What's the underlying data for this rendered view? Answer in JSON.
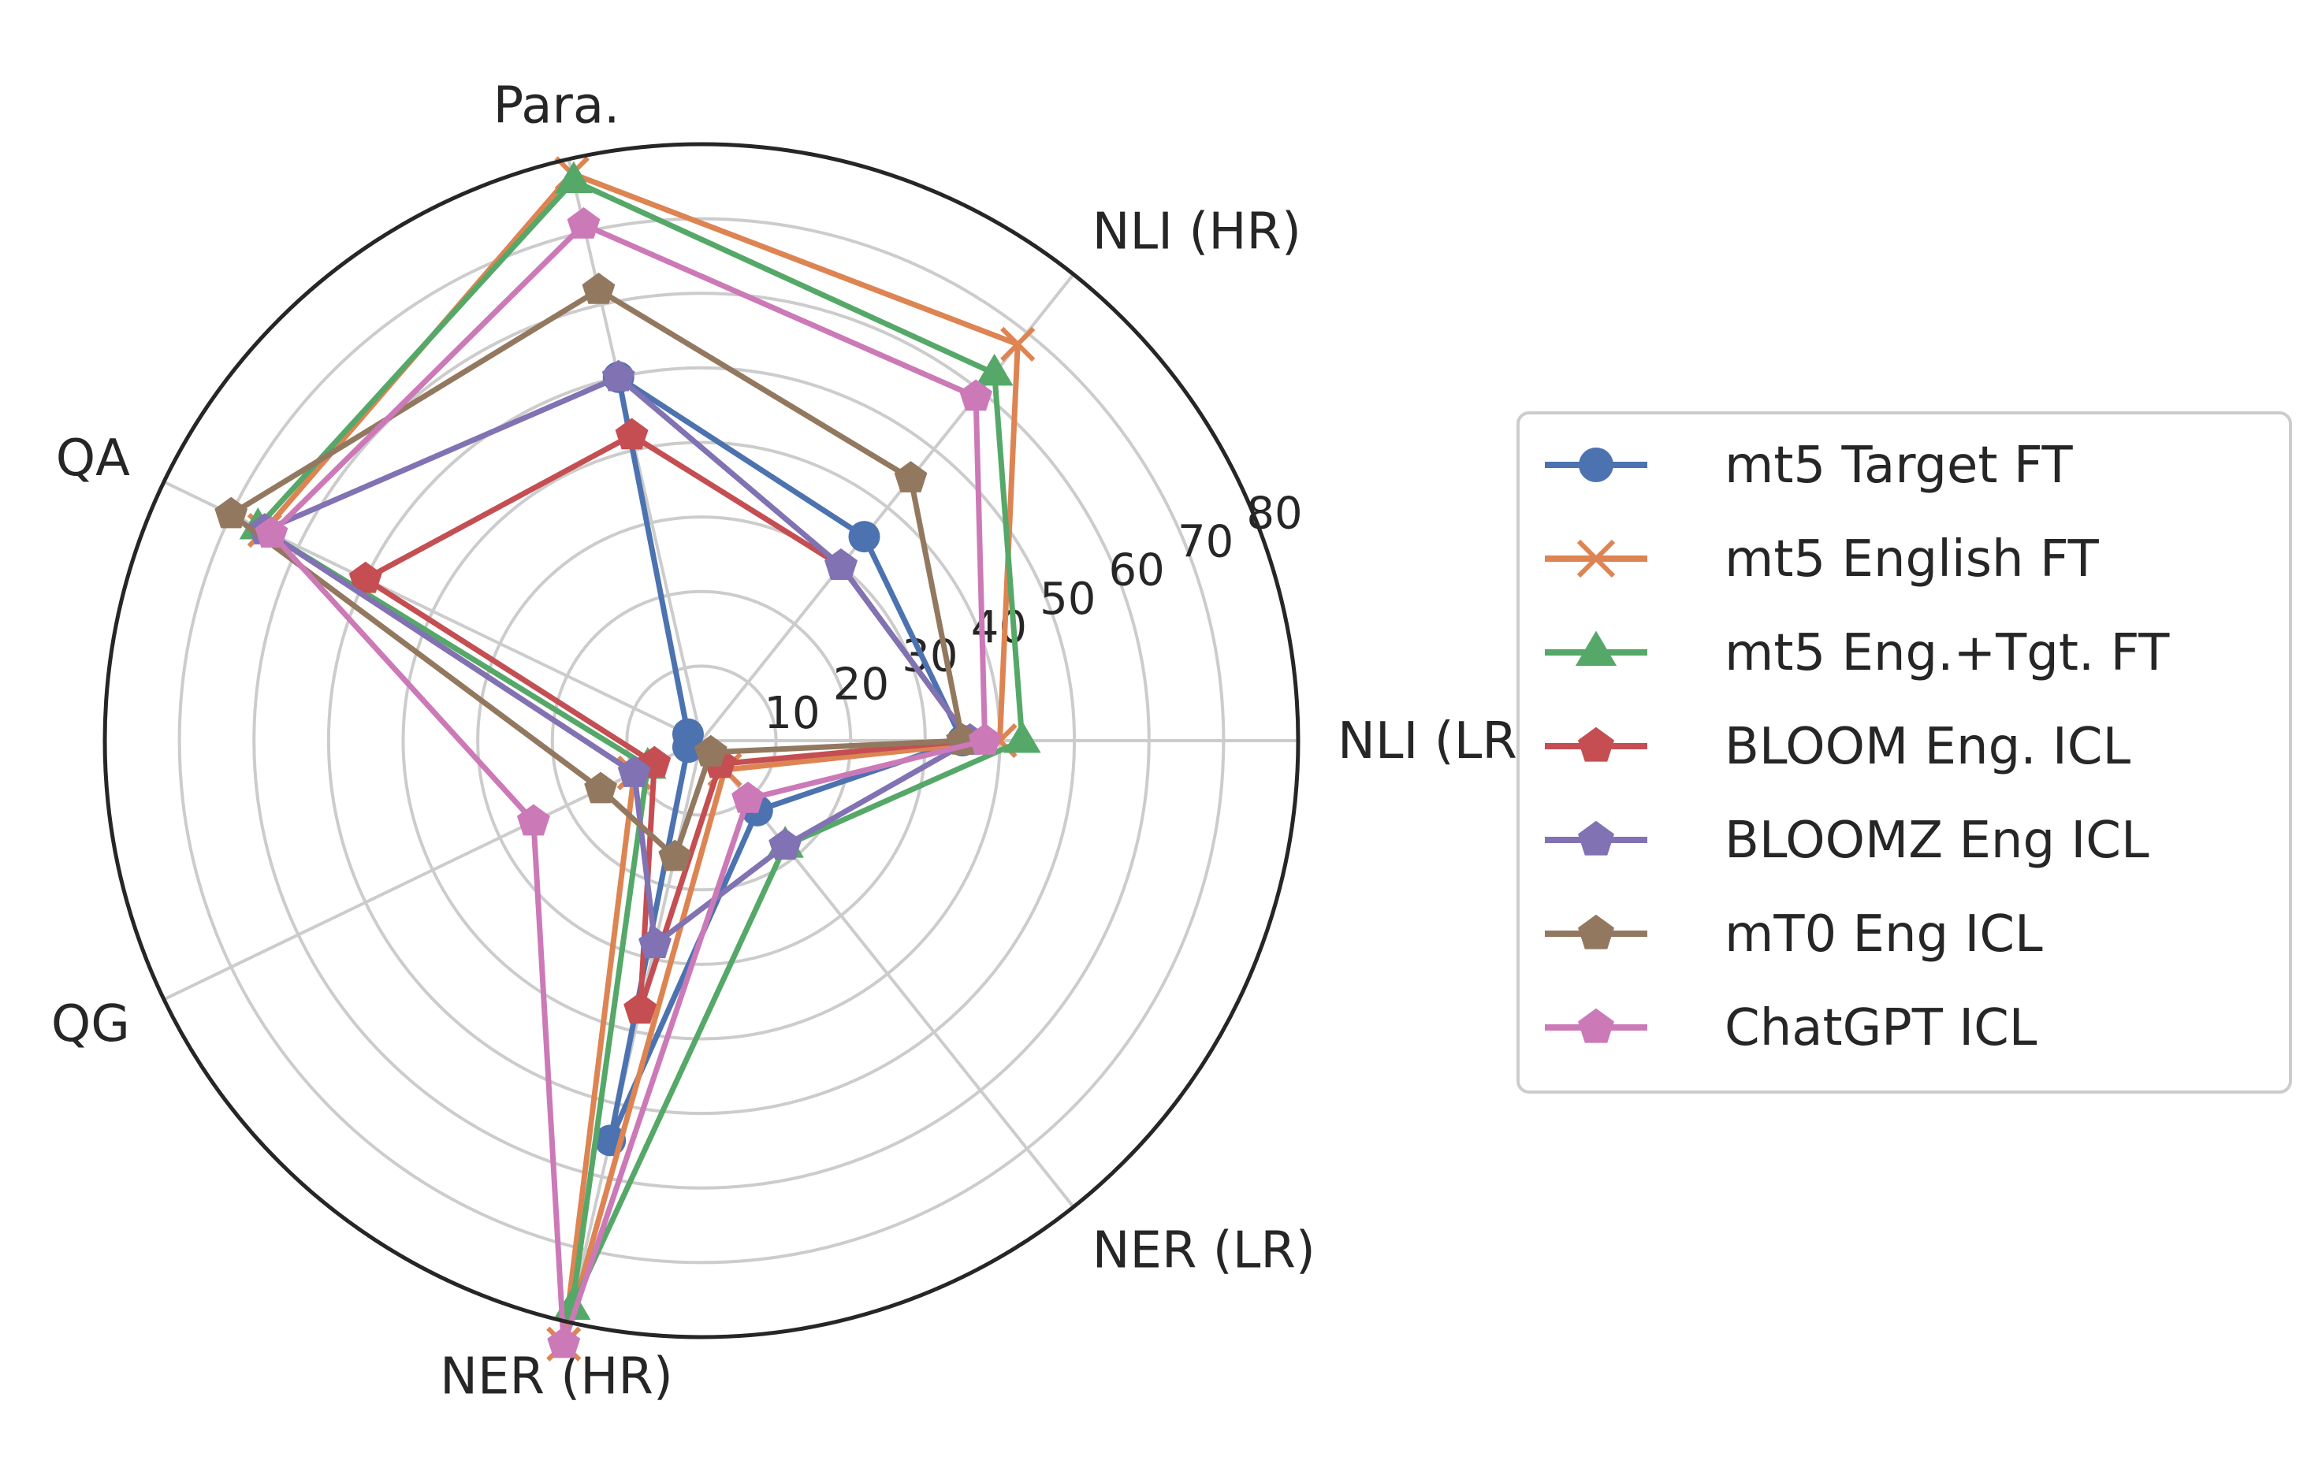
{
  "chart_data": {
    "type": "radar",
    "axes": [
      "NLI (LR)",
      "NLI (HR)",
      "Para.",
      "QA",
      "QG",
      "NER (HR)",
      "NER (LR)"
    ],
    "rlim": [
      0,
      80
    ],
    "r_ticks": [
      "10",
      "20",
      "30",
      "40",
      "50",
      "60",
      "70",
      "80"
    ],
    "grid": true,
    "legend_position": "right",
    "series": [
      {
        "name": "mt5 Target FT",
        "color": "#4c72b0",
        "marker": "circle",
        "values": [
          35,
          35,
          50,
          2,
          2,
          55,
          12
        ]
      },
      {
        "name": "mt5 English FT",
        "color": "#dd8452",
        "marker": "x",
        "values": [
          40,
          68,
          78,
          65,
          10,
          83,
          5
        ]
      },
      {
        "name": "mt5 Eng.+Tgt. FT",
        "color": "#55a868",
        "marker": "triangle",
        "values": [
          43,
          63,
          77,
          66,
          8,
          78,
          18
        ]
      },
      {
        "name": "BLOOM Eng. ICL",
        "color": "#c44e52",
        "marker": "pentagon",
        "values": [
          36,
          30,
          42,
          50,
          7,
          37,
          4
        ]
      },
      {
        "name": "BLOOMZ Eng ICL",
        "color": "#8172b3",
        "marker": "pentagon",
        "values": [
          36,
          30,
          50,
          65,
          10,
          28,
          18
        ]
      },
      {
        "name": "mT0 Eng ICL",
        "color": "#937860",
        "marker": "pentagon",
        "values": [
          35,
          45,
          62,
          70,
          15,
          16,
          2
        ]
      },
      {
        "name": "ChatGPT ICL",
        "color": "#cc79b8",
        "marker": "pentagon",
        "values": [
          38,
          59,
          71,
          64,
          25,
          83,
          10
        ]
      }
    ]
  }
}
